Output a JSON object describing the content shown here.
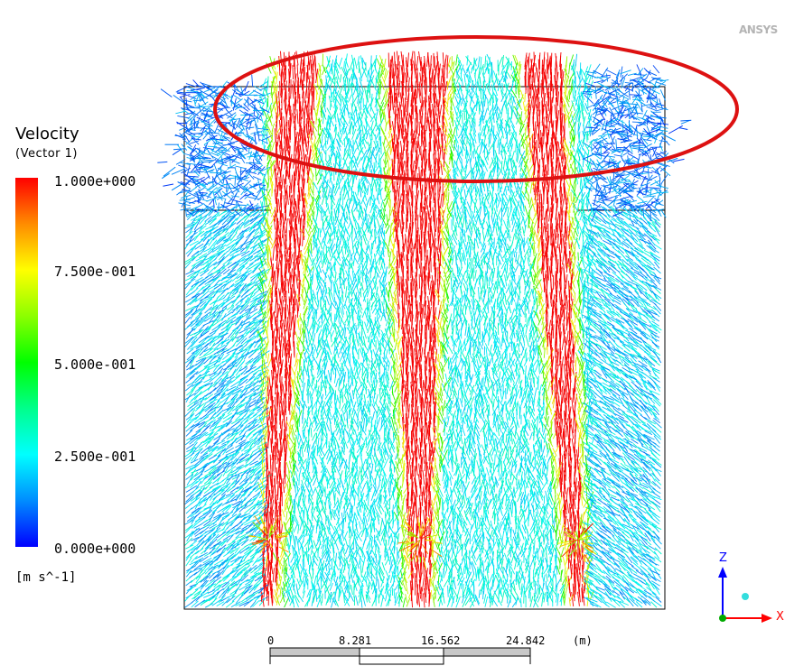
{
  "watermark": "ANSYS",
  "legend": {
    "title": "Velocity",
    "subtitle": "(Vector 1)",
    "ticks": [
      "1.000e+000",
      "7.500e-001",
      "5.000e-001",
      "2.500e-001",
      "0.000e+000"
    ],
    "units": "[m s^-1]"
  },
  "scale_bar": {
    "labels": [
      "0",
      "8.281",
      "16.562",
      "24.842"
    ],
    "unit": "(m)"
  },
  "axes": {
    "z": "Z",
    "x": "X"
  },
  "colors": {
    "annotation_ellipse": "#dd1111",
    "axis_blue": "#0000ff",
    "axis_red": "#ff0000",
    "axis_green": "#00aa00"
  }
}
